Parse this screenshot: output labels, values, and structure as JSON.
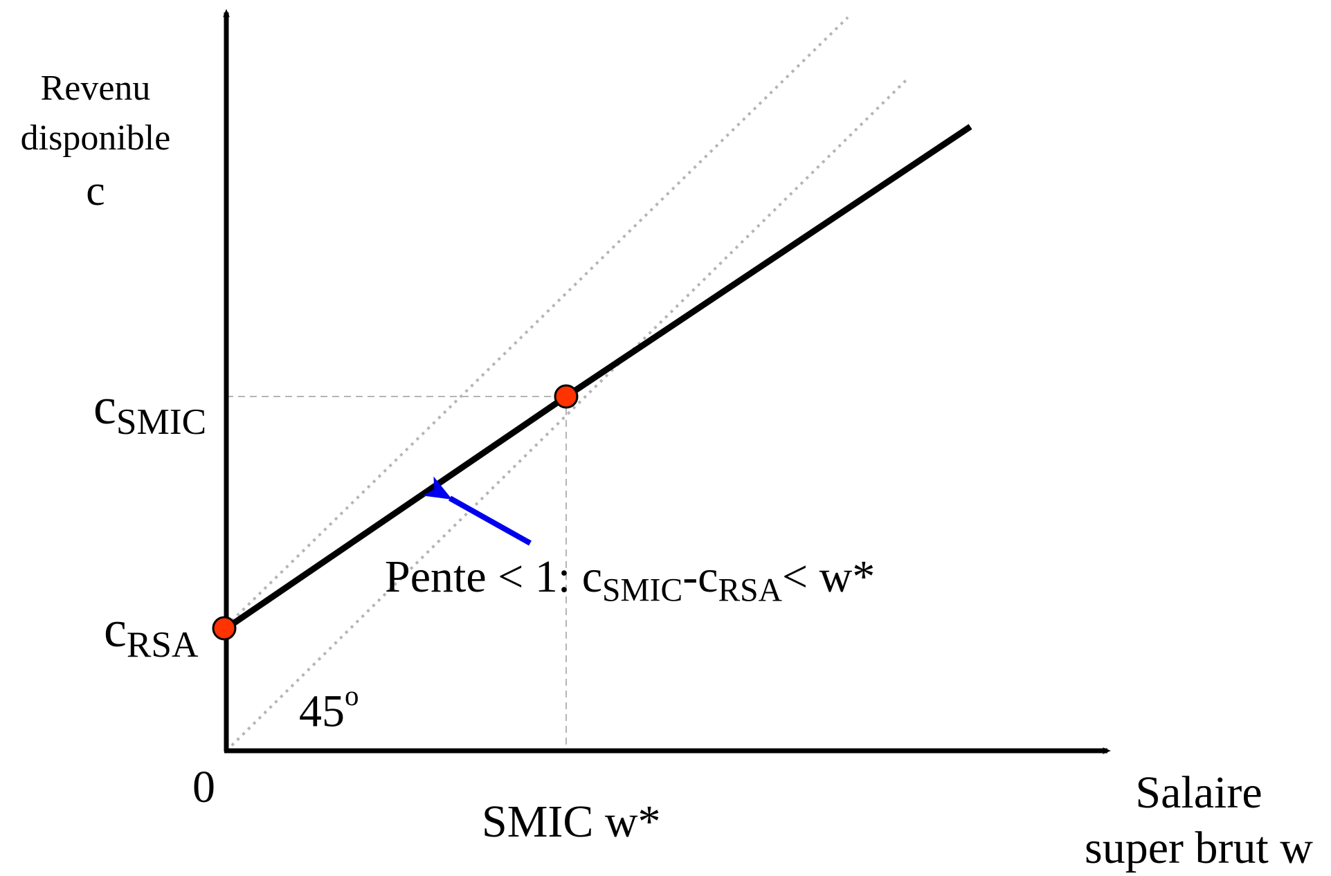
{
  "y_axis": {
    "title_lines": [
      "Revenu",
      "disponible",
      "c"
    ]
  },
  "x_axis": {
    "title_lines": [
      "Salaire",
      "super brut w"
    ]
  },
  "origin_label": "0",
  "ticks": {
    "x_smic": "SMIC w*",
    "c_smic": {
      "base": "c",
      "sub": "SMIC"
    },
    "c_rsa": {
      "base": "c",
      "sub": "RSA"
    }
  },
  "angle_label": {
    "value": "45",
    "sup": "o"
  },
  "annotation": {
    "lead": "Pente < 1: c",
    "sub1": "SMIC",
    "mid": "-c",
    "sub2": "RSA",
    "tail": "< w*"
  },
  "colors": {
    "axis": "#000000",
    "budget_line": "#000000",
    "reference_lines": "#b5b5b5",
    "guide_lines": "#b5b5b5",
    "point_fill": "#ff3300",
    "arrow": "#0000ee"
  },
  "points": [
    "c_rsa-point",
    "c_smic-point"
  ]
}
